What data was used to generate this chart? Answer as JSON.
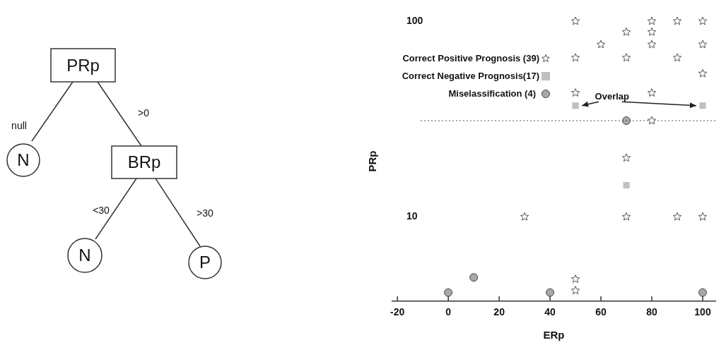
{
  "chart_data": [
    {
      "type": "other",
      "annotations": [
        "PRp",
        "null",
        ">0",
        "N",
        "BRp",
        "<30",
        ">30",
        "N",
        "P"
      ]
    },
    {
      "type": "scatter",
      "xlabel": "ERp",
      "ylabel": "PRp",
      "log": "y",
      "xlim": [
        -22,
        105
      ],
      "xticks": [
        -20,
        0,
        20,
        40,
        60,
        80,
        100
      ],
      "ylim": [
        3.7,
        100
      ],
      "yticks": [
        10,
        100
      ],
      "grid": false,
      "legend": "top left",
      "series": [
        {
          "name": "Correct Positive Prognosis (39)",
          "color": "#555555",
          "marker": "star",
          "x": [
            50,
            80,
            90,
            100,
            70,
            80,
            60,
            80,
            100,
            50,
            70,
            90,
            100,
            50,
            80,
            80,
            70,
            30,
            70,
            90,
            100,
            50,
            50
          ],
          "values": [
            100,
            100,
            100,
            100,
            88,
            88,
            76,
            76,
            76,
            65,
            65,
            65,
            54,
            43,
            43,
            31,
            20,
            10,
            10,
            10,
            10,
            4.8,
            4.2
          ]
        },
        {
          "name": "Correct Negative Prognosis(17)",
          "color": "#c0c0c0",
          "marker": "square",
          "x": [
            50,
            100,
            70
          ],
          "values": [
            37,
            37,
            14.5
          ]
        },
        {
          "name": "Miselassification (4)",
          "color": "#a8a8a8",
          "marker": "circle",
          "x": [
            0,
            10,
            40,
            100,
            70
          ],
          "values": [
            4.1,
            4.9,
            4.1,
            4.1,
            31
          ]
        }
      ],
      "ref_lines": [
        {
          "axis": "y",
          "value": 31,
          "line_style": "dotted",
          "color": "#555555"
        }
      ],
      "annotations": [
        "Overlap"
      ]
    }
  ]
}
